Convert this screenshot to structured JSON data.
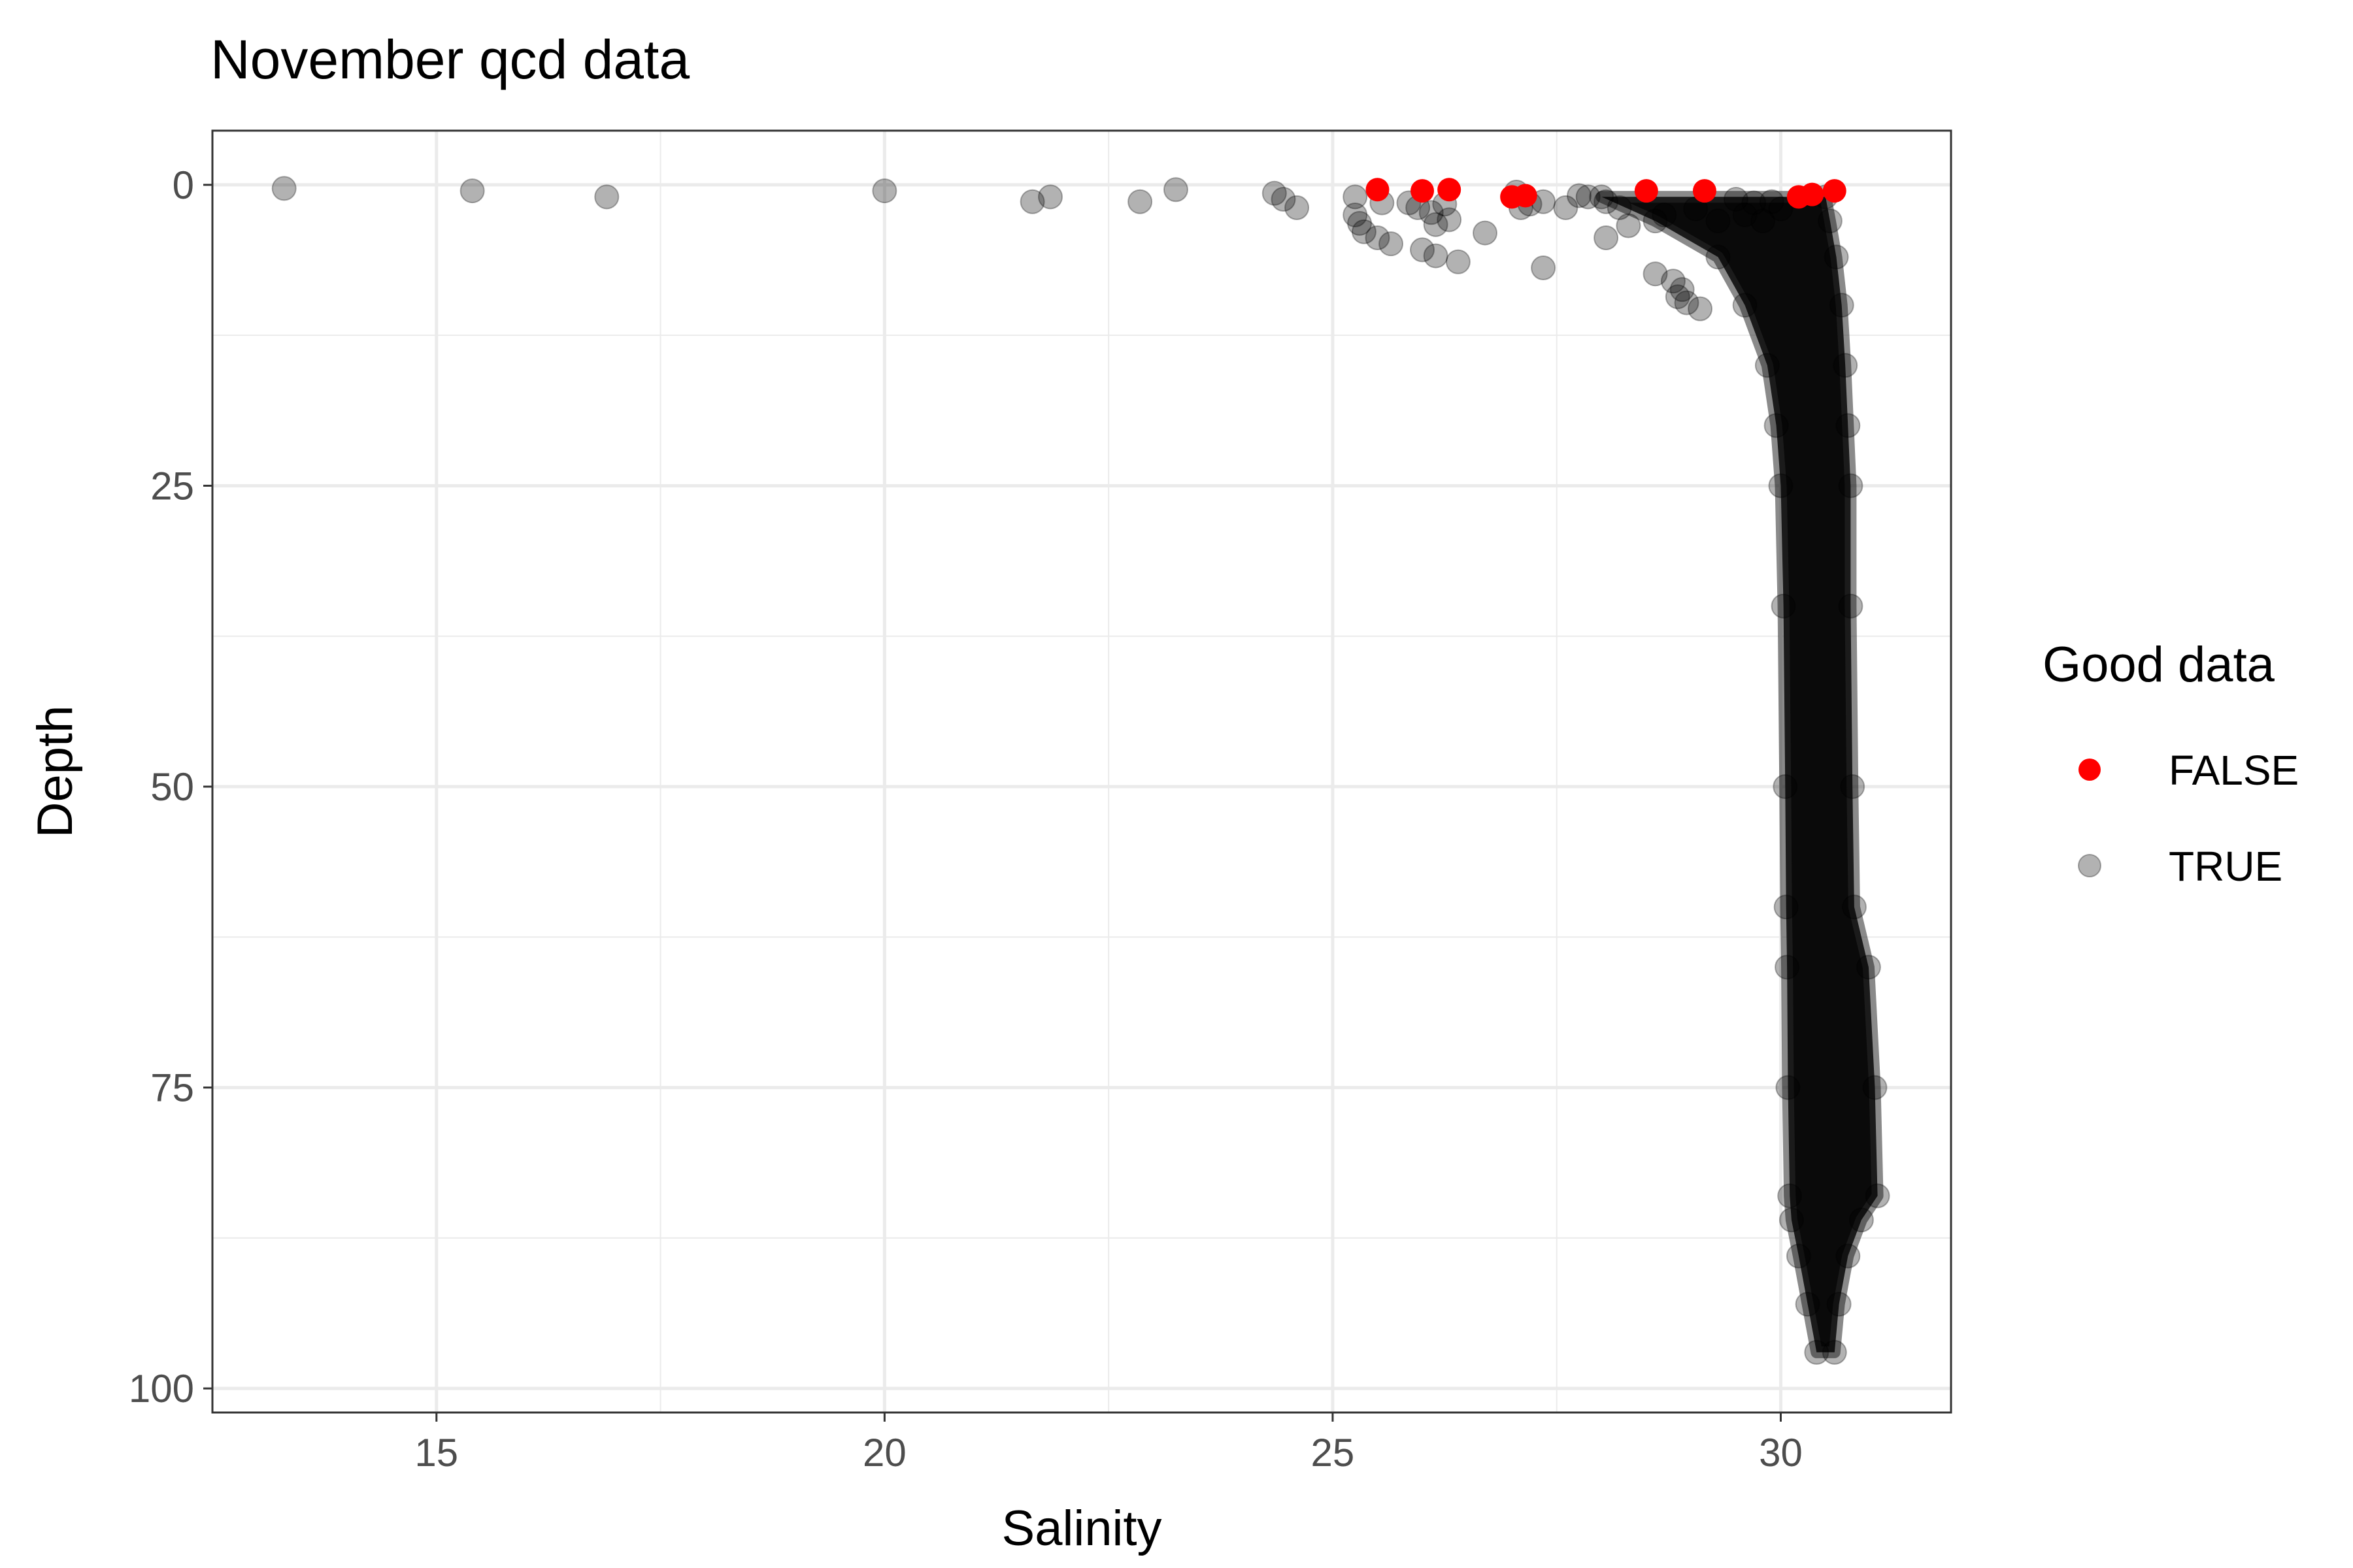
{
  "chart_data": {
    "type": "scatter",
    "title": "November qcd data",
    "xlabel": "Salinity",
    "ylabel": "Depth",
    "xlim": [
      12.5,
      31.9
    ],
    "ylim": [
      102,
      -4.5
    ],
    "y_reversed": true,
    "x_ticks": [
      15,
      20,
      25,
      30
    ],
    "x_minor_ticks": [
      12.5,
      17.5,
      22.5,
      27.5
    ],
    "y_ticks": [
      0,
      25,
      50,
      75,
      100
    ],
    "y_minor_ticks": [
      12.5,
      37.5,
      62.5,
      87.5
    ],
    "grid": true,
    "legend": {
      "title": "Good data",
      "placement": "right",
      "entries": [
        {
          "label": "FALSE",
          "color": "#ff0000",
          "opacity": 1.0
        },
        {
          "label": "TRUE",
          "color": "#000000",
          "opacity": 0.3
        }
      ]
    },
    "series": [
      {
        "name": "FALSE",
        "color": "#ff0000",
        "points": [
          [
            25.5,
            0.4
          ],
          [
            26.0,
            0.5
          ],
          [
            26.3,
            0.4
          ],
          [
            27.0,
            1.0
          ],
          [
            27.15,
            0.9
          ],
          [
            28.5,
            0.5
          ],
          [
            29.15,
            0.5
          ],
          [
            30.2,
            1.0
          ],
          [
            30.35,
            0.8
          ],
          [
            30.6,
            0.5
          ]
        ]
      },
      {
        "name": "TRUE",
        "color": "#000000",
        "points": [
          [
            13.3,
            0.3
          ],
          [
            15.4,
            0.5
          ],
          [
            16.9,
            1.0
          ],
          [
            20.0,
            0.5
          ],
          [
            21.65,
            1.4
          ],
          [
            21.85,
            1.0
          ],
          [
            22.85,
            1.4
          ],
          [
            23.25,
            0.4
          ],
          [
            24.35,
            0.7
          ],
          [
            24.45,
            1.2
          ],
          [
            24.6,
            1.9
          ],
          [
            25.25,
            1.0
          ],
          [
            25.25,
            2.5
          ],
          [
            25.3,
            3.2
          ],
          [
            25.35,
            3.9
          ],
          [
            25.5,
            4.4
          ],
          [
            25.55,
            1.5
          ],
          [
            25.65,
            4.9
          ],
          [
            25.85,
            1.5
          ],
          [
            25.95,
            1.9
          ],
          [
            26.0,
            5.4
          ],
          [
            26.1,
            2.3
          ],
          [
            26.15,
            3.3
          ],
          [
            26.15,
            5.9
          ],
          [
            26.25,
            1.6
          ],
          [
            26.3,
            2.9
          ],
          [
            26.4,
            6.4
          ],
          [
            26.7,
            4.0
          ],
          [
            27.05,
            0.6
          ],
          [
            27.1,
            1.9
          ],
          [
            27.2,
            1.6
          ],
          [
            27.35,
            1.4
          ],
          [
            27.35,
            6.9
          ],
          [
            27.6,
            1.9
          ],
          [
            27.75,
            0.9
          ],
          [
            27.85,
            1.0
          ],
          [
            28.05,
            1.4
          ],
          [
            28.05,
            4.4
          ],
          [
            28.2,
            1.9
          ],
          [
            28.3,
            3.4
          ],
          [
            28.6,
            7.4
          ],
          [
            28.8,
            8.0
          ],
          [
            28.85,
            9.3
          ],
          [
            28.95,
            9.8
          ],
          [
            28.9,
            8.7
          ],
          [
            29.1,
            10.3
          ],
          [
            28.7,
            2.5
          ],
          [
            29.05,
            2.0
          ],
          [
            29.3,
            3.0
          ],
          [
            29.5,
            1.2
          ],
          [
            29.7,
            1.5
          ],
          [
            29.9,
            1.4
          ],
          [
            29.6,
            2.5
          ],
          [
            29.8,
            3.0
          ],
          [
            30.0,
            2.0
          ]
        ]
      }
    ],
    "true_density_band": [
      {
        "depth": 1,
        "smin": 28.0,
        "smax": 30.5
      },
      {
        "depth": 3,
        "smin": 28.6,
        "smax": 30.55
      },
      {
        "depth": 6,
        "smin": 29.3,
        "smax": 30.62
      },
      {
        "depth": 10,
        "smin": 29.6,
        "smax": 30.68
      },
      {
        "depth": 15,
        "smin": 29.85,
        "smax": 30.72
      },
      {
        "depth": 20,
        "smin": 29.95,
        "smax": 30.75
      },
      {
        "depth": 25,
        "smin": 30.0,
        "smax": 30.78
      },
      {
        "depth": 35,
        "smin": 30.03,
        "smax": 30.78
      },
      {
        "depth": 50,
        "smin": 30.05,
        "smax": 30.8
      },
      {
        "depth": 60,
        "smin": 30.06,
        "smax": 30.82
      },
      {
        "depth": 65,
        "smin": 30.07,
        "smax": 30.98
      },
      {
        "depth": 75,
        "smin": 30.08,
        "smax": 31.05
      },
      {
        "depth": 84,
        "smin": 30.1,
        "smax": 31.08
      },
      {
        "depth": 86,
        "smin": 30.12,
        "smax": 30.9
      },
      {
        "depth": 89,
        "smin": 30.2,
        "smax": 30.75
      },
      {
        "depth": 93,
        "smin": 30.3,
        "smax": 30.65
      },
      {
        "depth": 97,
        "smin": 30.4,
        "smax": 30.6
      }
    ]
  }
}
